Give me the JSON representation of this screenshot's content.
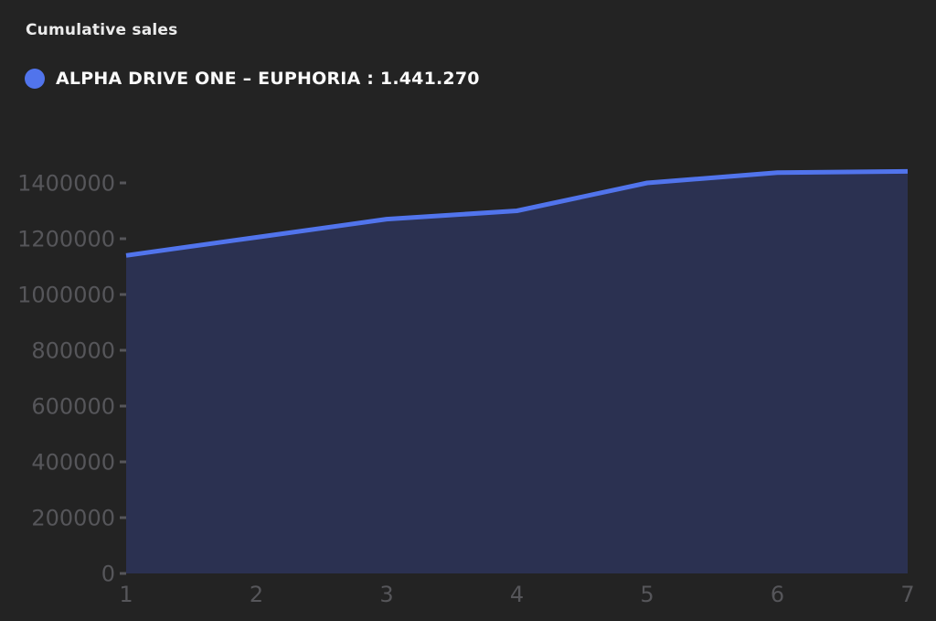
{
  "header": {
    "title": "Cumulative sales"
  },
  "legend": {
    "label": "ALPHA DRIVE ONE – EUPHORIA : 1.441.270",
    "marker_color": "#5174ec"
  },
  "colors": {
    "background": "#232323",
    "line": "#5174ec",
    "area_fill": "#2b3151",
    "tick_text": "#56565a"
  },
  "chart_data": {
    "type": "area",
    "title": "Cumulative sales",
    "x": [
      1,
      2,
      3,
      4,
      5,
      6,
      7
    ],
    "series": [
      {
        "name": "ALPHA DRIVE ONE – EUPHORIA",
        "final_value_label": "1.441.270",
        "values": [
          1140000,
          1205000,
          1270000,
          1300000,
          1400000,
          1437000,
          1441270
        ]
      }
    ],
    "xlabel": "",
    "ylabel": "",
    "ylim": [
      0,
      1400000
    ],
    "yticks": [
      0,
      200000,
      400000,
      600000,
      800000,
      1000000,
      1200000,
      1400000
    ],
    "ytick_labels": [
      "0",
      "200000",
      "400000",
      "600000",
      "800000",
      "1000000",
      "1200000",
      "1400000"
    ],
    "xtick_labels": [
      "1",
      "2",
      "3",
      "4",
      "5",
      "6",
      "7"
    ],
    "grid": false,
    "legend_position": "top-left"
  }
}
